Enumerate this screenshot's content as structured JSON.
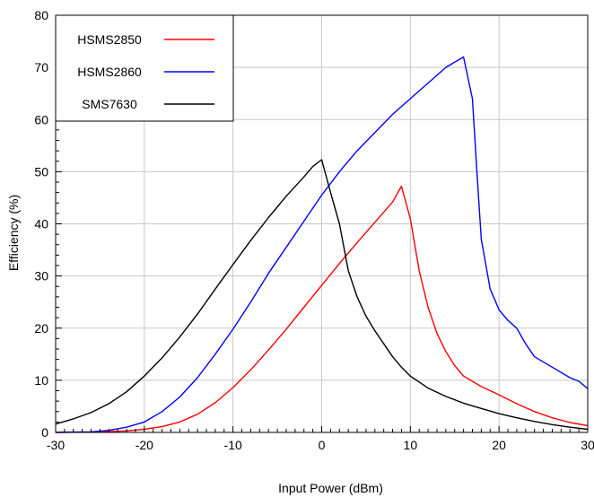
{
  "chart_data": {
    "type": "line",
    "title": "",
    "xlabel": "Input Power (dBm)",
    "ylabel": "Efficiency (%)",
    "xlim": [
      -30,
      30
    ],
    "ylim": [
      0,
      80
    ],
    "xticks": [
      -30,
      -20,
      -10,
      0,
      10,
      20,
      30
    ],
    "yticks": [
      0,
      10,
      20,
      30,
      40,
      50,
      60,
      70,
      80
    ],
    "x_tick_labels": [
      "-30",
      "-20",
      "-10",
      "0",
      "10",
      "20",
      "30"
    ],
    "y_tick_labels": [
      "0",
      "10",
      "20",
      "30",
      "40",
      "50",
      "60",
      "70",
      "80"
    ],
    "grid": true,
    "legend_position": "top-left",
    "series": [
      {
        "name": "HSMS2850",
        "color": "#ff0000",
        "points": [
          [
            -30,
            0
          ],
          [
            -25,
            0.1
          ],
          [
            -22,
            0.3
          ],
          [
            -20,
            0.6
          ],
          [
            -18,
            1.1
          ],
          [
            -16,
            2
          ],
          [
            -14,
            3.5
          ],
          [
            -12,
            5.7
          ],
          [
            -10,
            8.6
          ],
          [
            -8,
            12
          ],
          [
            -6,
            15.8
          ],
          [
            -4,
            19.8
          ],
          [
            -2,
            24
          ],
          [
            0,
            28.2
          ],
          [
            2,
            32.4
          ],
          [
            4,
            36.4
          ],
          [
            6,
            40.3
          ],
          [
            8,
            44.2
          ],
          [
            9,
            47.2
          ],
          [
            10,
            41
          ],
          [
            11,
            31
          ],
          [
            12,
            24
          ],
          [
            13,
            19
          ],
          [
            14,
            15.5
          ],
          [
            15,
            12.8
          ],
          [
            16,
            10.8
          ],
          [
            18,
            8.8
          ],
          [
            20,
            7.2
          ],
          [
            22,
            5.5
          ],
          [
            24,
            4
          ],
          [
            26,
            2.8
          ],
          [
            28,
            1.9
          ],
          [
            30,
            1.3
          ]
        ]
      },
      {
        "name": "HSMS2860",
        "color": "#0000ff",
        "points": [
          [
            -30,
            0
          ],
          [
            -26,
            0.1
          ],
          [
            -24,
            0.4
          ],
          [
            -22,
            1
          ],
          [
            -20,
            2
          ],
          [
            -18,
            4
          ],
          [
            -16,
            6.8
          ],
          [
            -14,
            10.5
          ],
          [
            -12,
            15
          ],
          [
            -10,
            19.8
          ],
          [
            -8,
            25
          ],
          [
            -6,
            30.5
          ],
          [
            -4,
            35.5
          ],
          [
            -2,
            40.5
          ],
          [
            0,
            45.5
          ],
          [
            2,
            50
          ],
          [
            4,
            54
          ],
          [
            6,
            57.5
          ],
          [
            8,
            61
          ],
          [
            10,
            64
          ],
          [
            12,
            67
          ],
          [
            14,
            70
          ],
          [
            16,
            72
          ],
          [
            17,
            64
          ],
          [
            17.5,
            50
          ],
          [
            18,
            37
          ],
          [
            19,
            27.5
          ],
          [
            20,
            23.5
          ],
          [
            21,
            21.5
          ],
          [
            22,
            20
          ],
          [
            23,
            17
          ],
          [
            24,
            14.5
          ],
          [
            26,
            12.5
          ],
          [
            28,
            10.5
          ],
          [
            29,
            9.8
          ],
          [
            30,
            8.4
          ]
        ]
      },
      {
        "name": "SMS7630",
        "color": "#000000",
        "points": [
          [
            -30,
            1.6
          ],
          [
            -28,
            2.6
          ],
          [
            -26,
            3.8
          ],
          [
            -24,
            5.5
          ],
          [
            -22,
            7.8
          ],
          [
            -20,
            10.8
          ],
          [
            -18,
            14.3
          ],
          [
            -16,
            18.3
          ],
          [
            -14,
            22.7
          ],
          [
            -12,
            27.5
          ],
          [
            -10,
            32.2
          ],
          [
            -8,
            36.8
          ],
          [
            -6,
            41.2
          ],
          [
            -4,
            45.3
          ],
          [
            -2,
            49
          ],
          [
            -1,
            51
          ],
          [
            0,
            52.3
          ],
          [
            1,
            46
          ],
          [
            2,
            40
          ],
          [
            3,
            31
          ],
          [
            4,
            26
          ],
          [
            5,
            22.3
          ],
          [
            6,
            19.5
          ],
          [
            7,
            17
          ],
          [
            8,
            14.5
          ],
          [
            9,
            12.5
          ],
          [
            10,
            10.8
          ],
          [
            12,
            8.5
          ],
          [
            14,
            6.9
          ],
          [
            16,
            5.6
          ],
          [
            18,
            4.6
          ],
          [
            20,
            3.6
          ],
          [
            22,
            2.8
          ],
          [
            24,
            2.1
          ],
          [
            26,
            1.5
          ],
          [
            28,
            1
          ],
          [
            30,
            0.6
          ]
        ]
      }
    ]
  }
}
